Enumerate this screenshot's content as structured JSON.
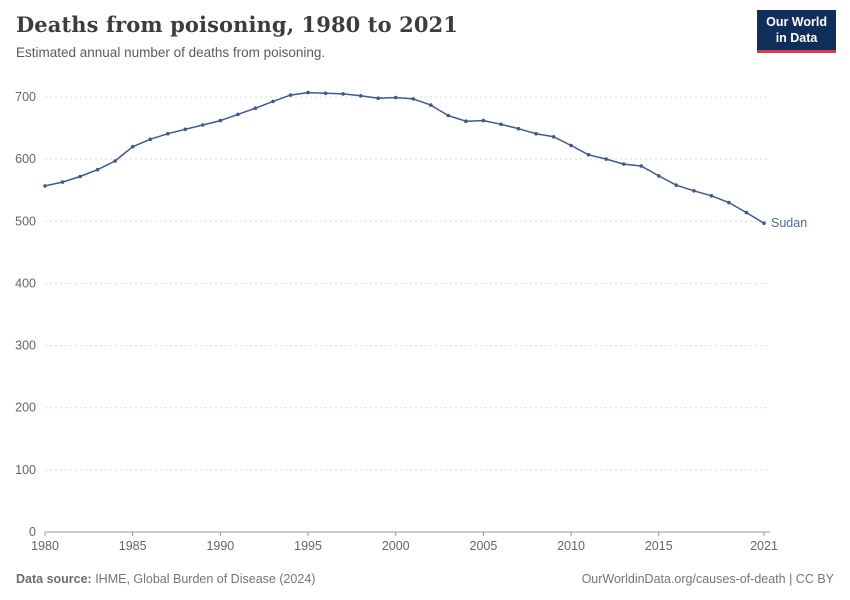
{
  "header": {
    "title": "Deaths from poisoning, 1980 to 2021",
    "subtitle": "Estimated annual number of deaths from poisoning.",
    "logo": {
      "line1": "Our World",
      "line2": "in Data",
      "bg_color": "#102e5c",
      "accent_color": "#d93a4d"
    }
  },
  "chart_data": {
    "type": "line",
    "title": "Deaths from poisoning, 1980 to 2021",
    "xlabel": "",
    "ylabel": "",
    "ylim": [
      0,
      700
    ],
    "yticks": [
      0,
      100,
      200,
      300,
      400,
      500,
      600,
      700
    ],
    "xticks": [
      1980,
      1985,
      1990,
      1995,
      2000,
      2005,
      2010,
      2015,
      2021
    ],
    "grid": true,
    "legend_position": "end-of-line-label",
    "colors": {
      "line": "#3d5a8f",
      "end_label": "#4c6a9c",
      "gridline": "#dcdcdc",
      "axis": "#999999",
      "tick_text": "#666666"
    },
    "series": [
      {
        "name": "Sudan",
        "color": "#3d5a8f",
        "x": [
          1980,
          1981,
          1982,
          1983,
          1984,
          1985,
          1986,
          1987,
          1988,
          1989,
          1990,
          1991,
          1992,
          1993,
          1994,
          1995,
          1996,
          1997,
          1998,
          1999,
          2000,
          2001,
          2002,
          2003,
          2004,
          2005,
          2006,
          2007,
          2008,
          2009,
          2010,
          2011,
          2012,
          2013,
          2014,
          2015,
          2016,
          2017,
          2018,
          2019,
          2020,
          2021
        ],
        "values": [
          557,
          563,
          572,
          583,
          597,
          620,
          632,
          641,
          648,
          655,
          662,
          672,
          682,
          693,
          703,
          707,
          706,
          705,
          702,
          698,
          699,
          697,
          687,
          670,
          661,
          662,
          656,
          649,
          641,
          636,
          622,
          607,
          600,
          592,
          589,
          573,
          558,
          549,
          541,
          530,
          514,
          497
        ]
      }
    ]
  },
  "footer": {
    "source_label": "Data source:",
    "source_text": " IHME, Global Burden of Disease (2024)",
    "right_text": "OurWorldinData.org/causes-of-death | CC BY"
  }
}
